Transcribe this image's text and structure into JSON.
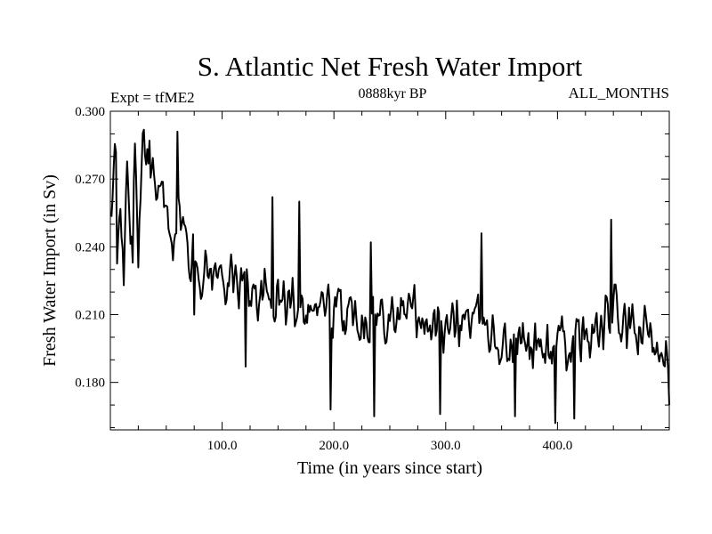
{
  "chart_data": {
    "type": "line",
    "title": "S. Atlantic Net Fresh Water Import",
    "subtitle_left": "Expt = tfME2",
    "subtitle_center": "0888kyr BP",
    "subtitle_right": "ALL_MONTHS",
    "xlabel": "Time (in years since start)",
    "ylabel": "Fresh Water Import (in Sv)",
    "xlim": [
      0,
      500
    ],
    "ylim": [
      0.159,
      0.3
    ],
    "xticks": [
      100,
      200,
      300,
      400
    ],
    "xtick_labels": [
      "100.0",
      "200.0",
      "300.0",
      "400.0"
    ],
    "yticks": [
      0.18,
      0.21,
      0.24,
      0.27,
      0.3
    ],
    "ytick_labels": [
      "0.180",
      "0.210",
      "0.240",
      "0.270",
      "0.300"
    ],
    "grid": false,
    "series": [
      {
        "name": "S. Atlantic Net Fresh Water Import",
        "x_start": 1,
        "x_step": 1,
        "anchors": [
          [
            1,
            0.252
          ],
          [
            4,
            0.277
          ],
          [
            6,
            0.226
          ],
          [
            9,
            0.262
          ],
          [
            12,
            0.243
          ],
          [
            15,
            0.268
          ],
          [
            18,
            0.247
          ],
          [
            22,
            0.275
          ],
          [
            25,
            0.235
          ],
          [
            28,
            0.278
          ],
          [
            32,
            0.284
          ],
          [
            36,
            0.28
          ],
          [
            40,
            0.27
          ],
          [
            45,
            0.262
          ],
          [
            50,
            0.255
          ],
          [
            55,
            0.24
          ],
          [
            60,
            0.262
          ],
          [
            65,
            0.248
          ],
          [
            70,
            0.236
          ],
          [
            75,
            0.232
          ],
          [
            80,
            0.23
          ],
          [
            90,
            0.23
          ],
          [
            100,
            0.226
          ],
          [
            110,
            0.225
          ],
          [
            120,
            0.223
          ],
          [
            130,
            0.22
          ],
          [
            140,
            0.217
          ],
          [
            150,
            0.217
          ],
          [
            160,
            0.215
          ],
          [
            170,
            0.218
          ],
          [
            180,
            0.214
          ],
          [
            190,
            0.214
          ],
          [
            200,
            0.212
          ],
          [
            210,
            0.21
          ],
          [
            220,
            0.211
          ],
          [
            230,
            0.21
          ],
          [
            240,
            0.209
          ],
          [
            250,
            0.212
          ],
          [
            260,
            0.21
          ],
          [
            270,
            0.214
          ],
          [
            280,
            0.21
          ],
          [
            290,
            0.204
          ],
          [
            300,
            0.2
          ],
          [
            310,
            0.207
          ],
          [
            320,
            0.209
          ],
          [
            330,
            0.206
          ],
          [
            340,
            0.204
          ],
          [
            350,
            0.196
          ],
          [
            360,
            0.197
          ],
          [
            370,
            0.198
          ],
          [
            380,
            0.196
          ],
          [
            390,
            0.195
          ],
          [
            400,
            0.196
          ],
          [
            410,
            0.197
          ],
          [
            420,
            0.198
          ],
          [
            430,
            0.2
          ],
          [
            440,
            0.203
          ],
          [
            450,
            0.212
          ],
          [
            460,
            0.204
          ],
          [
            470,
            0.202
          ],
          [
            480,
            0.201
          ],
          [
            490,
            0.199
          ],
          [
            500,
            0.196
          ]
        ],
        "noise_amplitude": 0.009,
        "spikes": [
          [
            5,
            0.282
          ],
          [
            12,
            0.223
          ],
          [
            20,
            0.233
          ],
          [
            35,
            0.287
          ],
          [
            52,
            0.248
          ],
          [
            60,
            0.291
          ],
          [
            75,
            0.21
          ],
          [
            121,
            0.187
          ],
          [
            145,
            0.262
          ],
          [
            169,
            0.26
          ],
          [
            197,
            0.168
          ],
          [
            236,
            0.165
          ],
          [
            233,
            0.242
          ],
          [
            295,
            0.166
          ],
          [
            332,
            0.246
          ],
          [
            362,
            0.165
          ],
          [
            398,
            0.162
          ],
          [
            415,
            0.164
          ],
          [
            448,
            0.252
          ],
          [
            500,
            0.17
          ]
        ]
      }
    ]
  }
}
